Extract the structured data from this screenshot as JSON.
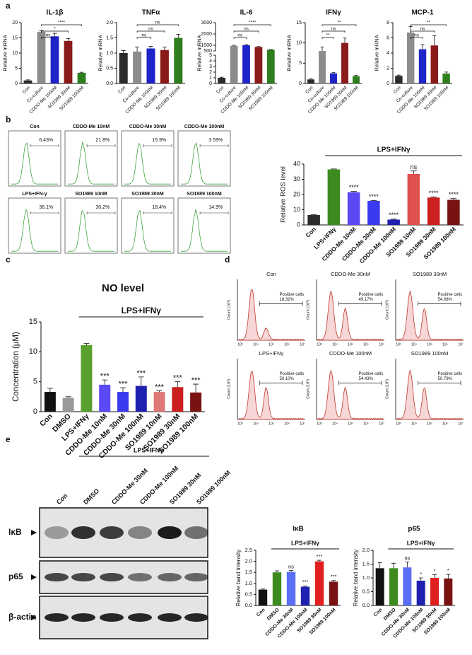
{
  "panel_labels": [
    "a",
    "b",
    "c",
    "d",
    "e"
  ],
  "chart_data": [
    {
      "type": "bar",
      "title": "IL-1β",
      "ylabel": "Relative mRNA",
      "categories": [
        "Con",
        "Co-culture",
        "CDDO-Me 100nM",
        "SO1989 30nM",
        "SO1989 100nM"
      ],
      "values": [
        1,
        17,
        15.5,
        14,
        3.5
      ],
      "errors": [
        0.2,
        0.4,
        1,
        0.8,
        0.2
      ],
      "colors": [
        "#2b2b2b",
        "#8c8c8c",
        "#1f24c8",
        "#8b1a1a",
        "#2e7d1e"
      ],
      "ylim": [
        0,
        20
      ],
      "yticks": [
        0,
        5,
        10,
        15,
        20
      ],
      "comparisons": [
        "ns",
        "*",
        "****"
      ]
    },
    {
      "type": "bar",
      "title": "TNFα",
      "ylabel": "Relative mRNA",
      "categories": [
        "Con",
        "Co-culture",
        "CDDO-Me 100nM",
        "SO1989 30nM",
        "SO1989 100nM"
      ],
      "values": [
        1.0,
        1.05,
        1.15,
        1.1,
        1.5
      ],
      "errors": [
        0.08,
        0.15,
        0.07,
        0.1,
        0.12
      ],
      "colors": [
        "#2b2b2b",
        "#8c8c8c",
        "#1f24c8",
        "#8b1a1a",
        "#2e7d1e"
      ],
      "ylim": [
        0,
        2
      ],
      "yticks": [
        {
          "value": 0,
          "label": "0.0"
        },
        {
          "value": 0.5,
          "label": "0.5"
        },
        {
          "value": 1,
          "label": "1.0"
        },
        {
          "value": 1.5,
          "label": "1.5"
        },
        {
          "value": 2,
          "label": "2.0"
        }
      ],
      "comparisons": [
        "ns",
        "ns",
        "ns"
      ]
    },
    {
      "type": "bar",
      "title": "IL-6",
      "ylabel": "Relative mRNA",
      "categories": [
        "Con",
        "Co-culture",
        "CDDO-Me 100nM",
        "SO1989 30nM",
        "SO1989 100nM"
      ],
      "values": [
        1,
        950,
        1000,
        850,
        600
      ],
      "errors": [
        0.1,
        50,
        60,
        40,
        30
      ],
      "colors": [
        "#2b2b2b",
        "#8c8c8c",
        "#1f24c8",
        "#8b1a1a",
        "#2e7d1e"
      ],
      "ylim": [
        0,
        3000
      ],
      "axis_break": [
        5,
        500
      ],
      "yticks": [
        0,
        1,
        2,
        3,
        4,
        5,
        500,
        1000,
        2000,
        3000
      ],
      "comparisons": [
        "ns",
        "ns",
        "****"
      ]
    },
    {
      "type": "bar",
      "title": "IFNγ",
      "ylabel": "Relative mRNA",
      "categories": [
        "Con",
        "Co-culture",
        "CDDO-Me 100nM",
        "SO1989 30nM",
        "SO1989 100nM"
      ],
      "values": [
        1,
        8,
        2.5,
        10,
        1.8
      ],
      "errors": [
        0.2,
        1,
        0.2,
        1.2,
        0.2
      ],
      "colors": [
        "#2b2b2b",
        "#8c8c8c",
        "#1f24c8",
        "#8b1a1a",
        "#2e7d1e"
      ],
      "ylim": [
        0,
        15
      ],
      "yticks": [
        0,
        5,
        10,
        15
      ],
      "comparisons": [
        "**",
        "ns",
        "**"
      ]
    },
    {
      "type": "bar",
      "title": "MCP-1",
      "ylabel": "Relative mRNA",
      "categories": [
        "Con",
        "Co-culture",
        "CDDO-Me 100nM",
        "SO1989 30nM",
        "SO1989 100nM"
      ],
      "values": [
        1,
        6.7,
        4.5,
        5,
        1.3
      ],
      "errors": [
        0.1,
        0.8,
        0.6,
        1.3,
        0.2
      ],
      "colors": [
        "#2b2b2b",
        "#8c8c8c",
        "#1f24c8",
        "#8b1a1a",
        "#2e7d1e"
      ],
      "ylim": [
        0,
        8
      ],
      "yticks": [
        0,
        2,
        4,
        6,
        8
      ],
      "comparisons": [
        "ns",
        "ns",
        "**"
      ]
    },
    {
      "type": "bar",
      "ylabel": "Relative ROS level",
      "group_label": "LPS+IFNγ",
      "categories": [
        "Con",
        "LPS+IFNγ",
        "CDDO-Me 10nM",
        "CDDO-Me 30nM",
        "CDDO-Me 100nM",
        "SO1989 10nM",
        "SO1989 30nM",
        "SO1989 100nM"
      ],
      "values": [
        6.5,
        36.5,
        21.5,
        15.8,
        3.5,
        33.5,
        18,
        16.5
      ],
      "errors": [
        0.3,
        0.3,
        0.5,
        0.3,
        0.3,
        2,
        0.4,
        0.8
      ],
      "significance": [
        null,
        null,
        "****",
        "****",
        "****",
        "ns",
        "****",
        "****"
      ],
      "colors": [
        "#2b2b2b",
        "#3d8b1e",
        "#5b49f5",
        "#3a3af0",
        "#1f1fb0",
        "#e0504f",
        "#cc1f1f",
        "#7a1212"
      ],
      "ylim": [
        0,
        40
      ],
      "yticks": [
        0,
        10,
        20,
        30,
        40
      ]
    },
    {
      "type": "bar",
      "title": "NO level",
      "ylabel": "Concentration (μM)",
      "group_label": "LPS+IFNγ",
      "categories": [
        "Con",
        "DMSO",
        "LPS+IFNγ",
        "CDDO-Me 10nM",
        "CDDO-Me 30nM",
        "CDDO-Me 100nM",
        "SO1989 10nM",
        "SO1989 30nM",
        "SO1989 100nM"
      ],
      "values": [
        3.3,
        2.3,
        11.1,
        4.5,
        3.3,
        4.3,
        3.3,
        4.1,
        3.2
      ],
      "errors": [
        0.6,
        0.2,
        0.3,
        0.8,
        0.7,
        1.5,
        0.2,
        0.9,
        1.4
      ],
      "significance": [
        null,
        null,
        null,
        "***",
        "***",
        "***",
        "***",
        "***",
        "***"
      ],
      "colors": [
        "#111111",
        "#999999",
        "#5aa02c",
        "#5b49f5",
        "#3a3af0",
        "#1f1fb0",
        "#e07878",
        "#cc1f1f",
        "#7a1212"
      ],
      "ylim": [
        0,
        15
      ],
      "yticks": [
        0,
        5,
        10,
        15
      ]
    },
    {
      "type": "bar",
      "title": "IκB",
      "ylabel": "Relative band intensity",
      "group_label": "LPS+IFNγ",
      "categories": [
        "Con",
        "DMSO",
        "CDDO-Me 30nM",
        "CDDO-Me 100nM",
        "SO1989 30nM",
        "SO1989 100nM"
      ],
      "values": [
        0.72,
        1.5,
        1.52,
        0.85,
        2.0,
        1.08
      ],
      "errors": [
        0.03,
        0.07,
        0.06,
        0.04,
        0.05,
        0.05
      ],
      "significance": [
        null,
        null,
        "ns",
        "***",
        "***",
        "***"
      ],
      "colors": [
        "#111111",
        "#3d8b1e",
        "#5b6ef5",
        "#1f1fb0",
        "#e02020",
        "#7a1212"
      ],
      "ylim": [
        0,
        2.5
      ],
      "yticks": [
        {
          "value": 0,
          "label": "0.0"
        },
        {
          "value": 0.5,
          "label": "0.5"
        },
        {
          "value": 1,
          "label": "1.0"
        },
        {
          "value": 1.5,
          "label": "1.5"
        },
        {
          "value": 2,
          "label": "2.0"
        },
        {
          "value": 2.5,
          "label": "2.5"
        }
      ]
    },
    {
      "type": "bar",
      "title": "p65",
      "ylabel": "Relative band intensity",
      "group_label": "LPS+IFNγ",
      "categories": [
        "Con",
        "DMSO",
        "CDDO-Me 30nM",
        "CDDO-Me 100nM",
        "SO1989 30nM",
        "SO1989 100nM"
      ],
      "values": [
        1.35,
        1.35,
        1.38,
        0.9,
        1.0,
        0.98
      ],
      "errors": [
        0.2,
        0.18,
        0.2,
        0.1,
        0.12,
        0.15
      ],
      "significance": [
        null,
        null,
        "ns",
        "*",
        "*",
        "*"
      ],
      "colors": [
        "#111111",
        "#3d8b1e",
        "#5b6ef5",
        "#1f1fb0",
        "#e02020",
        "#7a1212"
      ],
      "ylim": [
        0,
        2
      ],
      "yticks": [
        {
          "value": 0,
          "label": "0.0"
        },
        {
          "value": 0.5,
          "label": "0.5"
        },
        {
          "value": 1,
          "label": "1.0"
        },
        {
          "value": 1.5,
          "label": "1.5"
        },
        {
          "value": 2,
          "label": "2.0"
        }
      ]
    }
  ],
  "flow_b": {
    "panels": [
      {
        "title": "Con",
        "percent": "6.43%"
      },
      {
        "title": "CDDO-Me 10nM",
        "percent": "21.8%"
      },
      {
        "title": "CDDO-Me 30nM",
        "percent": "15.9%"
      },
      {
        "title": "CDDO-Me 100nM",
        "percent": "3.59%"
      },
      {
        "title": "LPS+IFN-γ",
        "percent": "36.1%"
      },
      {
        "title": "SO1989 10nM",
        "percent": "30.2%"
      },
      {
        "title": "SO1989 30nM",
        "percent": "18.4%"
      },
      {
        "title": "SO1989 100nM",
        "percent": "14.9%"
      }
    ]
  },
  "flow_d": {
    "gate_label": "Positive cells",
    "ylabel": "Count (10³)",
    "xticks": [
      "10³",
      "10⁴",
      "10⁵",
      "10⁶",
      "10⁷"
    ],
    "panels": [
      {
        "title": "Con",
        "percent": "18.32%"
      },
      {
        "title": "CDDO-Me 30nM",
        "percent": "49.17%"
      },
      {
        "title": "SO1989 30nM",
        "percent": "54.08%"
      },
      {
        "title": "LPS+IFNγ",
        "percent": "50.10%"
      },
      {
        "title": "CDDO-Me 100nM",
        "percent": "54.43%"
      },
      {
        "title": "SO1989 100nM",
        "percent": "50.79%"
      }
    ]
  },
  "blot_e": {
    "group_label": "LPS+IFNγ",
    "lanes": [
      "Con",
      "DMSO",
      "CDDO-Me 30nM",
      "CDDO-Me 100nM",
      "SO1989 30nM",
      "SO1989 100nM"
    ],
    "rows": [
      "IκB",
      "p65",
      "β-actin"
    ]
  }
}
